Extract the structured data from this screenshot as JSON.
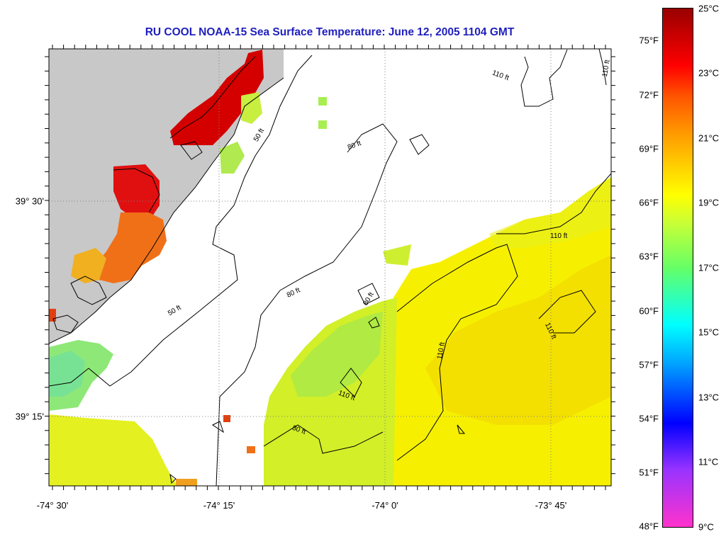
{
  "title": "RU COOL  NOAA-15  Sea Surface Temperature:  June 12, 2005 1104 GMT",
  "axes": {
    "lon_labels": [
      "-74° 30'",
      "-74° 15'",
      "-74° 0'",
      "-73° 45'"
    ],
    "lat_labels": [
      "39° 30'",
      "39° 15'"
    ]
  },
  "contours": {
    "label_50": "50 ft",
    "label_80": "80 ft",
    "label_110": "110 ft"
  },
  "colorbar": {
    "fahrenheit": [
      "75°F",
      "72°F",
      "69°F",
      "66°F",
      "63°F",
      "60°F",
      "57°F",
      "54°F",
      "51°F",
      "48°F"
    ],
    "celsius": [
      "25°C",
      "23°C",
      "21°C",
      "19°C",
      "17°C",
      "15°C",
      "13°C",
      "11°C",
      "9°C"
    ]
  },
  "colors": {
    "title": "#1f1fbe",
    "land": "#c8c8c8",
    "water_ffy": "#f4f400",
    "warm": "#e00000"
  }
}
